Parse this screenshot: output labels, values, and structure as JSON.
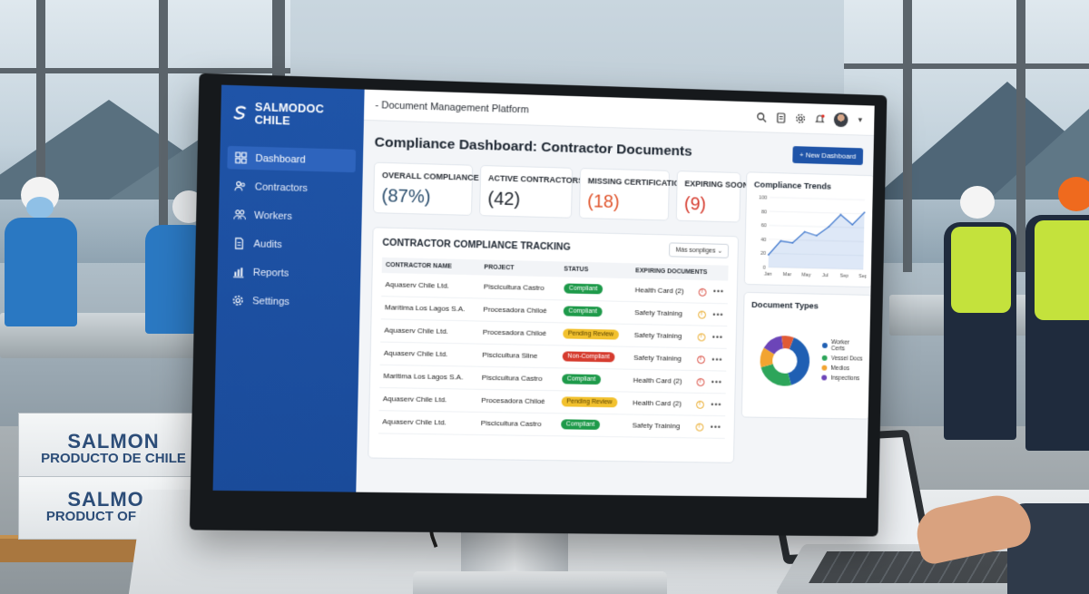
{
  "app": {
    "brand": "SALMODOC CHILE",
    "page_title": "- Document Management Platform"
  },
  "sidebar": {
    "items": [
      {
        "label": "Dashboard",
        "icon": "grid-icon",
        "active": true
      },
      {
        "label": "Contractors",
        "icon": "users-icon",
        "active": false
      },
      {
        "label": "Workers",
        "icon": "workers-icon",
        "active": false
      },
      {
        "label": "Audits",
        "icon": "document-icon",
        "active": false
      },
      {
        "label": "Reports",
        "icon": "bar-chart-icon",
        "active": false
      },
      {
        "label": "Settings",
        "icon": "gear-icon",
        "active": false
      }
    ]
  },
  "topbar": {
    "icons": [
      "search-icon",
      "document-icon",
      "settings-icon",
      "notification-bell-icon",
      "user-avatar"
    ]
  },
  "dashboard": {
    "heading": "Compliance Dashboard: Contractor Documents",
    "new_button": "+ New Dashboard"
  },
  "kpis": [
    {
      "label": "OVERALL COMPLIANCE",
      "value": "(87%)",
      "color": "#2c4f6e"
    },
    {
      "label": "ACTIVE CONTRACTORS",
      "value": "(42)",
      "color": "#1d232b"
    },
    {
      "label": "MISSING CERTIFICATIONS",
      "value": "(18)",
      "color": "#e0552d"
    },
    {
      "label": "EXPIRING SOON",
      "value": "(9)",
      "color": "#d63c2f"
    }
  ],
  "tracking": {
    "title": "CONTRACTOR COMPLIANCE TRACKING",
    "filter": "Más sonpliges",
    "columns": [
      "CONTRACTOR NAME",
      "PROJECT",
      "STATUS",
      "EXPIRING DOCUMENTS"
    ],
    "rows": [
      {
        "contractor": "Aquaserv Chile Ltd.",
        "project": "Piscicultura Castro",
        "status": "Compliant",
        "doc": "Health Card (2)",
        "alert": "#d63c2f"
      },
      {
        "contractor": "Marítima Los Lagos S.A.",
        "project": "Procesadora Chiloé",
        "status": "Compliant",
        "doc": "Safety Training",
        "alert": "#e8a317"
      },
      {
        "contractor": "Aquaserv Chile Ltd.",
        "project": "Procesadora Chiloé",
        "status": "Pending Review",
        "doc": "Safety Training",
        "alert": "#e8a317"
      },
      {
        "contractor": "Aquaserv Chile Ltd.",
        "project": "Piscicultura Sline",
        "status": "Non-Compliant",
        "doc": "Safety Training",
        "alert": "#d63c2f"
      },
      {
        "contractor": "Maritima Los Lagos S.A.",
        "project": "Piscicultura Castro",
        "status": "Compliant",
        "doc": "Health Card (2)",
        "alert": "#d63c2f"
      },
      {
        "contractor": "Aquaserv Chile Ltd.",
        "project": "Procesadora Chiloé",
        "status": "Pending Review",
        "doc": "Health Card (2)",
        "alert": "#e8a317"
      },
      {
        "contractor": "Aquaserv Chile Ltd.",
        "project": "Piscicultura Castro",
        "status": "Compliant",
        "doc": "Safety Training",
        "alert": "#e8a317"
      }
    ],
    "status_colors": {
      "Compliant": "#1e9a4a",
      "Pending Review": "#f2c12e",
      "Non-Compliant": "#d63c2f"
    }
  },
  "trends": {
    "title": "Compliance Trends",
    "y_ticks": [
      "100",
      "80",
      "60",
      "40",
      "20",
      "0"
    ],
    "x_ticks": [
      "Jan",
      "Mar",
      "May",
      "Jul",
      "Sep",
      "Sep"
    ],
    "values": [
      18,
      38,
      36,
      52,
      47,
      60,
      78,
      64,
      82
    ],
    "ylim": [
      0,
      100
    ],
    "color": "#4a7fd0"
  },
  "doc_types": {
    "title": "Document Types",
    "segments": [
      {
        "label": "Worker Certs",
        "value": 40,
        "color": "#1f5fb3"
      },
      {
        "label": "Vessel Docs",
        "value": 25,
        "color": "#2da55a"
      },
      {
        "label": "Medios",
        "value": 13,
        "color": "#f2a431"
      },
      {
        "label": "Inspections",
        "value": 14,
        "color": "#6c45b8"
      },
      {
        "label": "",
        "value": 8,
        "color": "#e05a35"
      }
    ]
  },
  "boxes": [
    {
      "line1": "SALMON",
      "line2": "PRODUCTO DE CHILE"
    },
    {
      "line1": "SALMON",
      "line2": "PRODUCT OF CHILE"
    }
  ]
}
